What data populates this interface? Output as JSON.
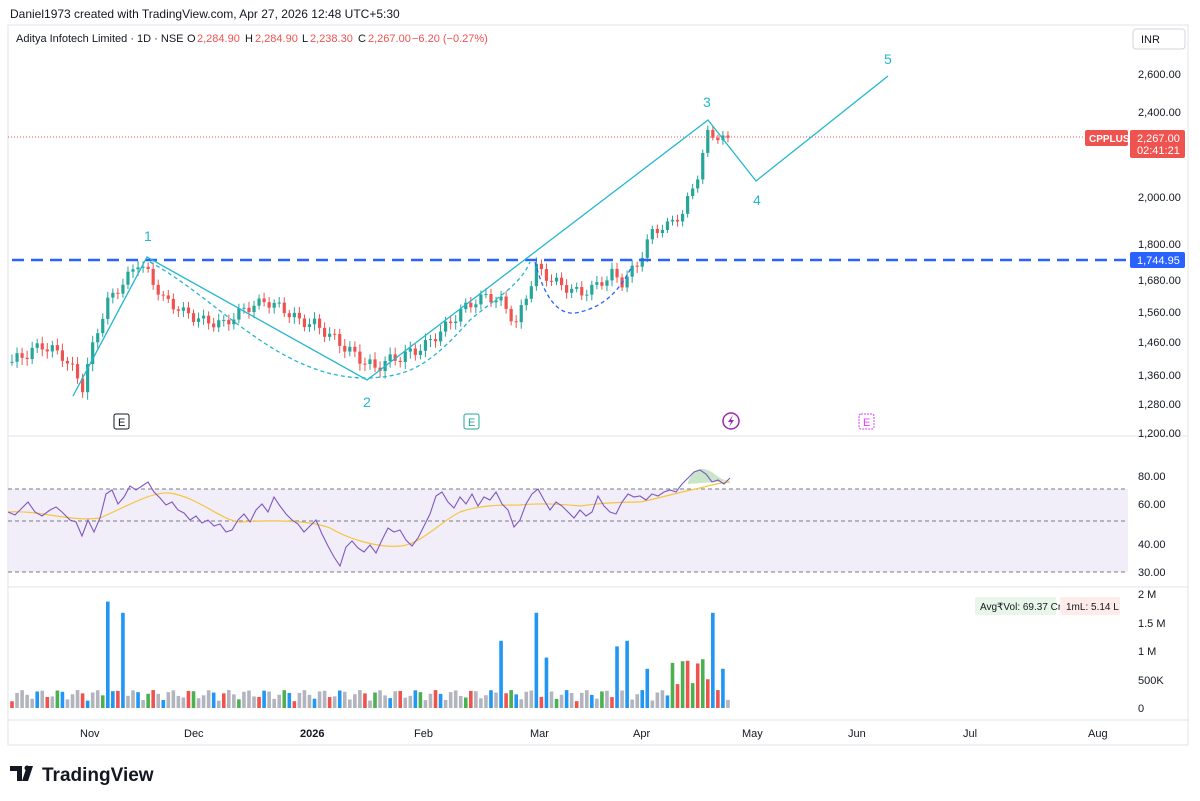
{
  "header": {
    "credit": "Daniel1973 created with TradingView.com, Apr 27, 2026 12:48 UTC+5:30",
    "symbol_line": "Aditya Infotech Limited · 1D · NSE",
    "o_label": "O",
    "o_value": "2,284.90",
    "h_label": "H",
    "h_value": "2,284.90",
    "l_label": "L",
    "l_value": "2,238.30",
    "c_label": "C",
    "c_value": "2,267.00",
    "change": "−6.20 (−0.27%)",
    "currency": "INR"
  },
  "price_axis": {
    "ticks": [
      "2,600.00",
      "2,400.00",
      "2,000.00",
      "1,800.00",
      "1,680.00",
      "1,560.00",
      "1,460.00",
      "1,360.00",
      "1,280.00",
      "1,200.00"
    ],
    "current_ticker": "CPPLUS",
    "current_price": "2,267.00",
    "countdown": "02:41:21",
    "support_label": "1,744.95"
  },
  "rsi_axis": {
    "ticks": [
      "80.00",
      "60.00",
      "40.00",
      "30.00"
    ]
  },
  "volume_axis": {
    "ticks": [
      "2 M",
      "1.5 M",
      "1 M",
      "500K",
      "0"
    ]
  },
  "volume_legend": {
    "avg": "Avg₹Vol: 69.37 Cr",
    "ml": "1mL: 5.14 L"
  },
  "x_axis": {
    "labels": [
      "Nov",
      "Dec",
      "2026",
      "Feb",
      "Mar",
      "Apr",
      "May",
      "Jun",
      "Jul",
      "Aug"
    ]
  },
  "event_markers": {
    "earnings1": "E",
    "earnings2": "E",
    "earnings3": "E"
  },
  "wave_labels": [
    "1",
    "2",
    "3",
    "4",
    "5"
  ],
  "brand": "TradingView",
  "colors": {
    "up": "#26a69a",
    "down": "#ef5350",
    "wave": "#22b8cf",
    "support": "#2962ff",
    "rsi": "#7e57c2",
    "rsi_ma": "#f5c542",
    "vol_blue": "#2196f3",
    "vol_green": "#4caf50",
    "vol_red": "#ef5350",
    "vol_gray": "#b2b5be"
  },
  "chart_data": [
    {
      "type": "candlestick",
      "title": "Aditya Infotech Limited · 1D · NSE",
      "ylim": [
        1200,
        2650
      ],
      "x": [
        "2025-10-23",
        "2025-10-30",
        "2025-11-06",
        "2025-11-13",
        "2025-11-20",
        "2025-11-27",
        "2025-12-04",
        "2025-12-11",
        "2025-12-18",
        "2025-12-25",
        "2026-01-01",
        "2026-01-08",
        "2026-01-15",
        "2026-01-22",
        "2026-01-29",
        "2026-02-05",
        "2026-02-12",
        "2026-02-19",
        "2026-02-26",
        "2026-03-05",
        "2026-03-12",
        "2026-03-19",
        "2026-03-26",
        "2026-04-02",
        "2026-04-09",
        "2026-04-16",
        "2026-04-21",
        "2026-04-27"
      ],
      "close": [
        1400,
        1420,
        1330,
        1640,
        1730,
        1590,
        1545,
        1580,
        1600,
        1560,
        1495,
        1420,
        1380,
        1405,
        1500,
        1560,
        1650,
        1620,
        1720,
        1640,
        1660,
        1700,
        1820,
        1900,
        2100,
        2320,
        2300,
        2267
      ],
      "support_level": 1744.95,
      "last_price": 2267.0,
      "last_ohlc": {
        "open": 2284.9,
        "high": 2284.9,
        "low": 2238.3,
        "close": 2267.0
      },
      "change": -6.2,
      "change_pct": -0.27,
      "wave_points": [
        {
          "label": "1",
          "date": "2025-11-18",
          "price": 1750
        },
        {
          "label": "2",
          "date": "2026-01-19",
          "price": 1340
        },
        {
          "label": "3",
          "date": "2026-04-20",
          "price": 2370
        },
        {
          "label": "4",
          "date": "2026-04-30",
          "price": 2070
        },
        {
          "label": "5",
          "date": "2026-06-10",
          "price": 2580
        }
      ]
    },
    {
      "type": "line",
      "title": "RSI",
      "ylim": [
        25,
        90
      ],
      "bands": [
        30,
        50,
        70
      ],
      "x": [
        "2025-10-23",
        "2025-11-06",
        "2025-11-18",
        "2025-12-04",
        "2025-12-18",
        "2026-01-01",
        "2026-01-19",
        "2026-02-05",
        "2026-02-26",
        "2026-03-12",
        "2026-03-26",
        "2026-04-09",
        "2026-04-20",
        "2026-04-27"
      ],
      "series": [
        {
          "values": [
            55,
            45,
            78,
            48,
            64,
            52,
            32,
            66,
            71,
            52,
            60,
            72,
            85,
            78
          ]
        },
        {
          "values": [
            52,
            50,
            68,
            58,
            55,
            53,
            40,
            50,
            58,
            56,
            58,
            65,
            75,
            76
          ]
        }
      ]
    },
    {
      "type": "bar",
      "title": "Volume",
      "ylim": [
        0,
        2000000
      ],
      "x": [
        "2025-11-13",
        "2025-11-20",
        "2026-02-19",
        "2026-02-26",
        "2026-03-26",
        "2026-04-02",
        "2026-04-20",
        "2026-04-22"
      ],
      "values": [
        1600000,
        1500000,
        1050000,
        1500000,
        1000000,
        1100000,
        1500000,
        800000
      ]
    }
  ]
}
